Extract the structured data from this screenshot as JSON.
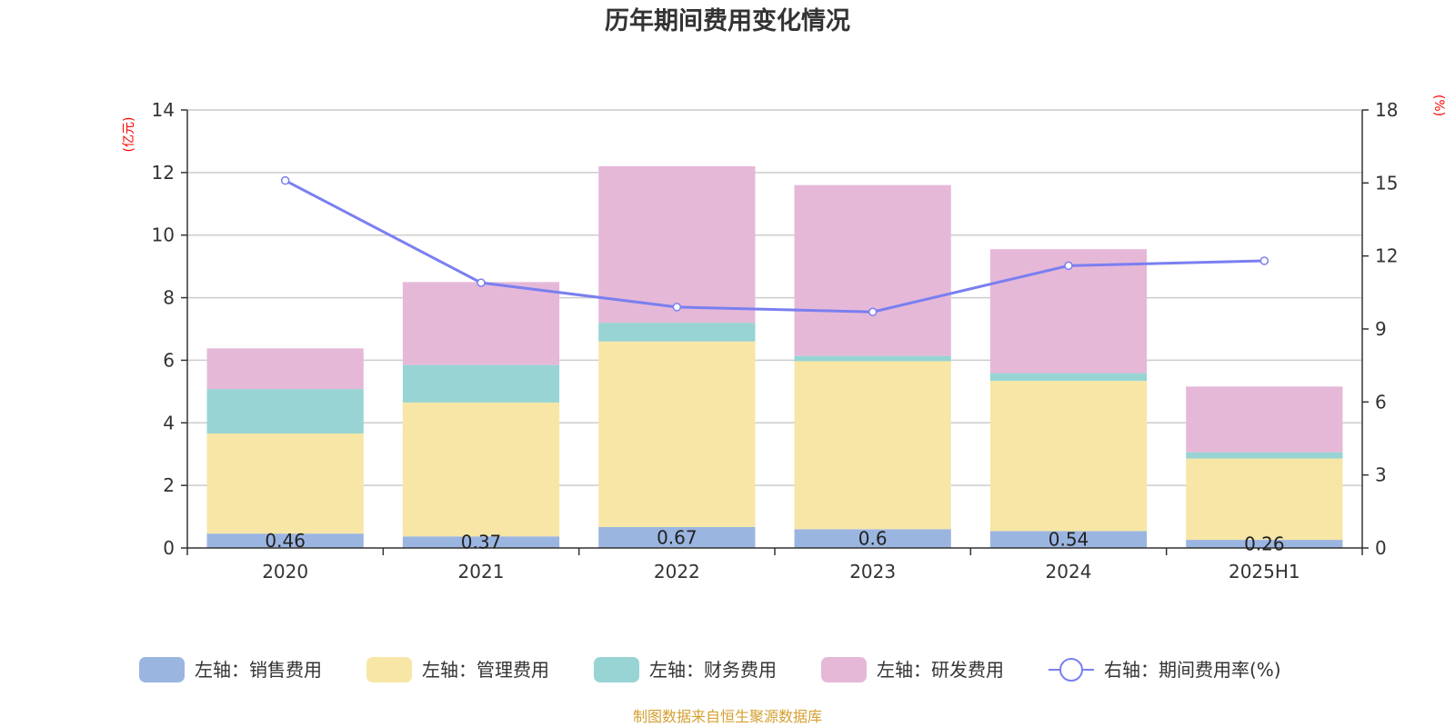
{
  "chart_data": {
    "type": "bar",
    "stacked": true,
    "title": "历年期间费用变化情况",
    "left_unit": "(亿元)",
    "right_unit": "(%)",
    "categories": [
      "2020",
      "2021",
      "2022",
      "2023",
      "2024",
      "2025H1"
    ],
    "left_axis": {
      "min": 0,
      "max": 14,
      "ticks": [
        "0",
        "2",
        "4",
        "6",
        "8",
        "10",
        "12",
        "14"
      ]
    },
    "right_axis": {
      "min": 0,
      "max": 18,
      "ticks": [
        "0",
        "3",
        "6",
        "9",
        "12",
        "15",
        "18"
      ]
    },
    "series": [
      {
        "name": "左轴：销售费用",
        "type": "bar",
        "color": "#9bb5e1",
        "values": [
          0.46,
          0.37,
          0.67,
          0.6,
          0.54,
          0.26
        ],
        "labels": [
          "0.46",
          "0.37",
          "0.67",
          "0.6",
          "0.54",
          "0.26"
        ]
      },
      {
        "name": "左轴：管理费用",
        "type": "bar",
        "color": "#f7e6a6",
        "values": [
          3.2,
          4.28,
          5.93,
          5.37,
          4.8,
          2.6
        ]
      },
      {
        "name": "左轴：财务费用",
        "type": "bar",
        "color": "#98d4d4",
        "values": [
          1.42,
          1.2,
          0.6,
          0.17,
          0.25,
          0.2
        ]
      },
      {
        "name": "左轴：研发费用",
        "type": "bar",
        "color": "#e6b8d8",
        "values": [
          1.3,
          2.65,
          5.0,
          5.46,
          3.96,
          2.1
        ]
      },
      {
        "name": "右轴：期间费用率(%)",
        "type": "line",
        "axis": "right",
        "color": "#7a7ff0",
        "values": [
          15.1,
          10.9,
          9.9,
          9.7,
          11.6,
          11.8
        ]
      }
    ],
    "grid": true,
    "legend_position": "bottom"
  },
  "footer": {
    "source": "制图数据来自恒生聚源数据库"
  }
}
